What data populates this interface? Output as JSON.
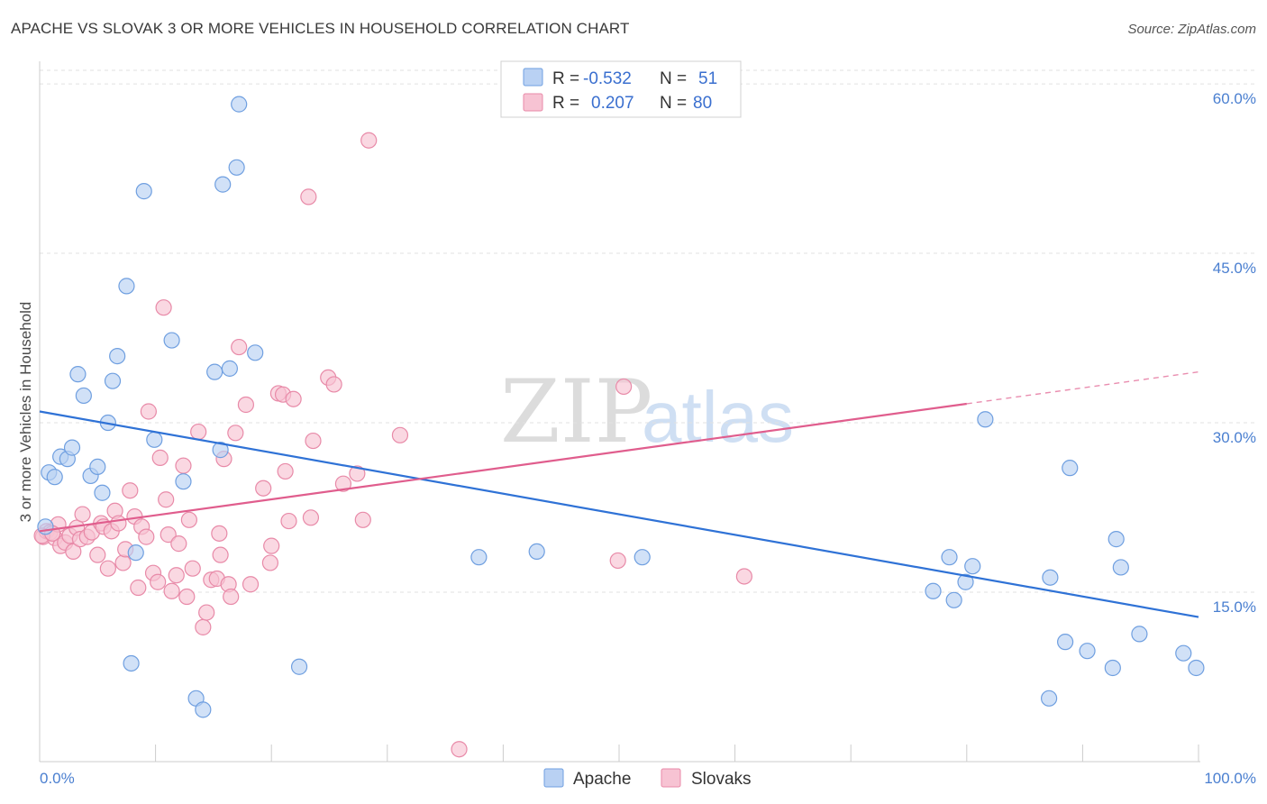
{
  "header": {
    "title": "APACHE VS SLOVAK 3 OR MORE VEHICLES IN HOUSEHOLD CORRELATION CHART",
    "source": "Source: ZipAtlas.com"
  },
  "watermark": {
    "zip": "ZIP",
    "atlas": "atlas"
  },
  "legend": {
    "r_label": "R =",
    "n_label": "N =",
    "rows": [
      {
        "name": "Apache",
        "r": "-0.532",
        "n": "51"
      },
      {
        "name": "Slovaks",
        "r": "0.207",
        "n": "80"
      }
    ]
  },
  "colors": {
    "apache_fill": "#b9d1f3",
    "apache_stroke": "#6f9fe0",
    "apache_line": "#2f72d6",
    "slovak_fill": "#f7c3d3",
    "slovak_stroke": "#e88aa8",
    "slovak_line": "#e05d8d",
    "grid": "#e2e2e2",
    "tick_label": "#4a7fd0"
  },
  "chart_data": {
    "type": "scatter",
    "title": "APACHE VS SLOVAK 3 OR MORE VEHICLES IN HOUSEHOLD CORRELATION CHART",
    "xlabel": "",
    "ylabel": "3 or more Vehicles in Household",
    "xlim": [
      0,
      100
    ],
    "ylim": [
      0,
      62
    ],
    "x_tick_labels": [
      "0.0%",
      "100.0%"
    ],
    "y_ticks": [
      15,
      30,
      45,
      60
    ],
    "y_tick_labels": [
      "15.0%",
      "30.0%",
      "45.0%",
      "60.0%"
    ],
    "legend_position": "top-center",
    "series": [
      {
        "name": "Apache",
        "r": -0.532,
        "n": 51,
        "trend": {
          "x0": 0,
          "y0": 31.0,
          "x1": 100,
          "y1": 12.8,
          "dash_from": null
        },
        "points": [
          [
            0.5,
            20.8
          ],
          [
            0.8,
            25.6
          ],
          [
            1.3,
            25.2
          ],
          [
            1.8,
            27.0
          ],
          [
            2.4,
            26.8
          ],
          [
            2.8,
            27.8
          ],
          [
            3.3,
            34.3
          ],
          [
            3.8,
            32.4
          ],
          [
            4.4,
            25.3
          ],
          [
            5.0,
            26.1
          ],
          [
            5.4,
            23.8
          ],
          [
            5.9,
            30.0
          ],
          [
            6.3,
            33.7
          ],
          [
            6.7,
            35.9
          ],
          [
            7.5,
            42.1
          ],
          [
            7.9,
            8.7
          ],
          [
            8.3,
            18.5
          ],
          [
            9.0,
            50.5
          ],
          [
            9.9,
            28.5
          ],
          [
            11.4,
            37.3
          ],
          [
            12.4,
            24.8
          ],
          [
            13.5,
            5.6
          ],
          [
            14.1,
            4.6
          ],
          [
            15.1,
            34.5
          ],
          [
            15.6,
            27.6
          ],
          [
            15.8,
            51.1
          ],
          [
            16.4,
            34.8
          ],
          [
            17.0,
            52.6
          ],
          [
            17.2,
            58.2
          ],
          [
            18.6,
            36.2
          ],
          [
            22.4,
            8.4
          ],
          [
            37.9,
            18.1
          ],
          [
            42.9,
            18.6
          ],
          [
            52.0,
            18.1
          ],
          [
            77.1,
            15.1
          ],
          [
            78.5,
            18.1
          ],
          [
            78.9,
            14.3
          ],
          [
            79.9,
            15.9
          ],
          [
            80.5,
            17.3
          ],
          [
            81.6,
            30.3
          ],
          [
            87.2,
            16.3
          ],
          [
            87.1,
            5.6
          ],
          [
            88.5,
            10.6
          ],
          [
            88.9,
            26.0
          ],
          [
            90.4,
            9.8
          ],
          [
            92.6,
            8.3
          ],
          [
            92.9,
            19.7
          ],
          [
            93.3,
            17.2
          ],
          [
            94.9,
            11.3
          ],
          [
            98.7,
            9.6
          ],
          [
            99.8,
            8.3
          ]
        ]
      },
      {
        "name": "Slovaks",
        "r": 0.207,
        "n": 80,
        "trend": {
          "x0": 0,
          "y0": 20.4,
          "x1": 100,
          "y1": 34.5,
          "dash_from": 80
        },
        "points": [
          [
            0.3,
            19.9
          ],
          [
            0.6,
            20.4
          ],
          [
            0.9,
            20.3
          ],
          [
            1.3,
            19.8
          ],
          [
            1.6,
            21.0
          ],
          [
            1.8,
            19.1
          ],
          [
            2.2,
            19.4
          ],
          [
            2.6,
            20.0
          ],
          [
            2.9,
            18.6
          ],
          [
            3.2,
            20.7
          ],
          [
            3.5,
            19.7
          ],
          [
            3.7,
            21.9
          ],
          [
            4.1,
            19.9
          ],
          [
            4.5,
            20.3
          ],
          [
            5.0,
            18.3
          ],
          [
            5.3,
            21.1
          ],
          [
            5.5,
            20.8
          ],
          [
            5.9,
            17.1
          ],
          [
            6.2,
            20.4
          ],
          [
            6.5,
            22.2
          ],
          [
            6.8,
            21.1
          ],
          [
            7.2,
            17.6
          ],
          [
            7.4,
            18.8
          ],
          [
            7.8,
            24.0
          ],
          [
            8.2,
            21.7
          ],
          [
            8.5,
            15.4
          ],
          [
            8.8,
            20.8
          ],
          [
            9.2,
            19.9
          ],
          [
            9.4,
            31.0
          ],
          [
            9.8,
            16.7
          ],
          [
            10.2,
            15.9
          ],
          [
            10.4,
            26.9
          ],
          [
            10.9,
            23.2
          ],
          [
            11.1,
            20.1
          ],
          [
            11.4,
            15.1
          ],
          [
            11.8,
            16.5
          ],
          [
            12.0,
            19.3
          ],
          [
            12.4,
            26.2
          ],
          [
            12.7,
            14.6
          ],
          [
            12.9,
            21.4
          ],
          [
            13.2,
            17.1
          ],
          [
            13.7,
            29.2
          ],
          [
            14.1,
            11.9
          ],
          [
            14.4,
            13.2
          ],
          [
            14.8,
            16.1
          ],
          [
            15.3,
            16.2
          ],
          [
            15.5,
            20.2
          ],
          [
            15.6,
            18.3
          ],
          [
            15.9,
            26.8
          ],
          [
            16.3,
            15.7
          ],
          [
            16.5,
            14.6
          ],
          [
            16.9,
            29.1
          ],
          [
            17.2,
            36.7
          ],
          [
            17.8,
            31.6
          ],
          [
            18.2,
            15.7
          ],
          [
            19.3,
            24.2
          ],
          [
            19.9,
            17.6
          ],
          [
            20.0,
            19.1
          ],
          [
            20.6,
            32.6
          ],
          [
            21.0,
            32.5
          ],
          [
            21.2,
            25.7
          ],
          [
            21.5,
            21.3
          ],
          [
            21.9,
            32.1
          ],
          [
            23.2,
            50.0
          ],
          [
            23.4,
            21.6
          ],
          [
            23.6,
            28.4
          ],
          [
            24.9,
            34.0
          ],
          [
            25.4,
            33.4
          ],
          [
            26.2,
            24.6
          ],
          [
            27.4,
            25.5
          ],
          [
            27.9,
            21.4
          ],
          [
            28.4,
            55.0
          ],
          [
            31.1,
            28.9
          ],
          [
            36.2,
            1.1
          ],
          [
            49.9,
            17.8
          ],
          [
            50.4,
            33.2
          ],
          [
            60.8,
            16.4
          ],
          [
            10.7,
            40.2
          ],
          [
            0.2,
            20.0
          ],
          [
            1.1,
            20.2
          ]
        ]
      }
    ]
  }
}
